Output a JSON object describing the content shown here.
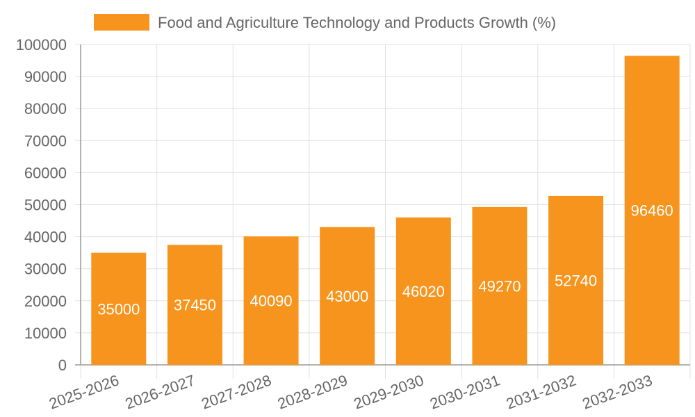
{
  "chart_data": {
    "type": "bar",
    "categories": [
      "2025-2026",
      "2026-2027",
      "2027-2028",
      "2028-2029",
      "2029-2030",
      "2030-2031",
      "2031-2032",
      "2032-2033"
    ],
    "series": [
      {
        "name": "Food and Agriculture Technology and Products Growth (%)",
        "values": [
          35000,
          37450,
          40090,
          43000,
          46020,
          49270,
          52740,
          96460
        ],
        "color": "#f7941d"
      }
    ],
    "ylim": [
      0,
      100000
    ],
    "yticks": [
      0,
      10000,
      20000,
      30000,
      40000,
      50000,
      60000,
      70000,
      80000,
      90000,
      100000
    ],
    "grid": true,
    "legend": "top",
    "data_labels": true,
    "xlabel": "",
    "ylabel": ""
  },
  "colors": {
    "grid": "#e0e0e0",
    "axis": "#999999",
    "text": "#666666",
    "label": "#ffffff"
  }
}
